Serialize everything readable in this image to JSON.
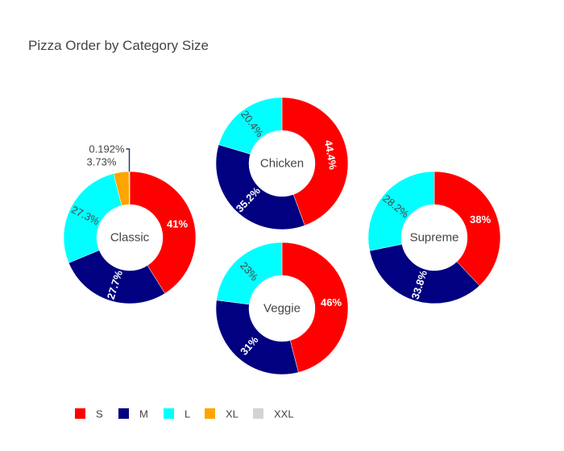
{
  "chart_data": {
    "type": "pie",
    "title": "Pizza Order by Category Size",
    "legend": {
      "placement": "bottom-left",
      "orientation": "horizontal",
      "entries": [
        {
          "name": "S",
          "color": "#ff0000"
        },
        {
          "name": "M",
          "color": "#000080"
        },
        {
          "name": "L",
          "color": "#00ffff"
        },
        {
          "name": "XL",
          "color": "#ffa500"
        },
        {
          "name": "XXL",
          "color": "#d3d3d3"
        }
      ]
    },
    "charts": [
      {
        "name": "Classic",
        "hole": 0.5,
        "slices": [
          {
            "label": "S",
            "value": 41.0,
            "text": "41%"
          },
          {
            "label": "M",
            "value": 27.7,
            "text": "27.7%"
          },
          {
            "label": "L",
            "value": 27.3,
            "text": "27.3%"
          },
          {
            "label": "XL",
            "value": 3.73,
            "text": "3.73%"
          },
          {
            "label": "XXL",
            "value": 0.192,
            "text": "0.192%"
          }
        ]
      },
      {
        "name": "Chicken",
        "hole": 0.5,
        "slices": [
          {
            "label": "S",
            "value": 44.4,
            "text": "44.4%"
          },
          {
            "label": "M",
            "value": 35.2,
            "text": "35.2%"
          },
          {
            "label": "L",
            "value": 20.4,
            "text": "20.4%"
          }
        ]
      },
      {
        "name": "Veggie",
        "hole": 0.5,
        "slices": [
          {
            "label": "S",
            "value": 46.0,
            "text": "46%"
          },
          {
            "label": "M",
            "value": 31.0,
            "text": "31%"
          },
          {
            "label": "L",
            "value": 23.0,
            "text": "23%"
          }
        ]
      },
      {
        "name": "Supreme",
        "hole": 0.5,
        "slices": [
          {
            "label": "S",
            "value": 38.0,
            "text": "38%"
          },
          {
            "label": "M",
            "value": 33.8,
            "text": "33.8%"
          },
          {
            "label": "L",
            "value": 28.2,
            "text": "28.2%"
          }
        ]
      }
    ]
  }
}
